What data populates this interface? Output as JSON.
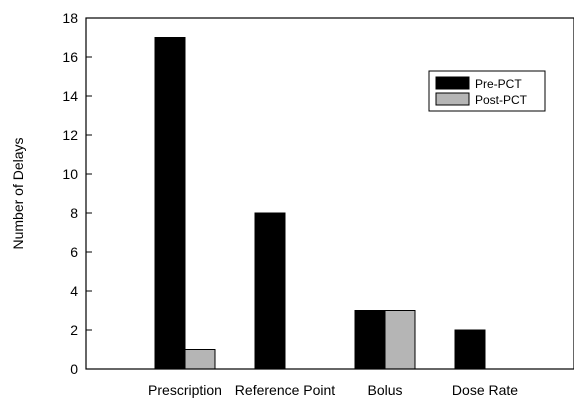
{
  "chart_data": {
    "type": "bar",
    "title": "",
    "xlabel": "",
    "ylabel": "Number of Delays",
    "ylim": [
      0,
      18
    ],
    "yticks": [
      0,
      2,
      4,
      6,
      8,
      10,
      12,
      14,
      16,
      18
    ],
    "categories": [
      "Prescription",
      "Reference Point",
      "Bolus",
      "Dose Rate"
    ],
    "series": [
      {
        "name": "Pre-PCT",
        "color": "#000000",
        "values": [
          17,
          8,
          3,
          2
        ]
      },
      {
        "name": "Post-PCT",
        "color": "#b5b5b5",
        "values": [
          1,
          0,
          3,
          0
        ]
      }
    ],
    "grid": false,
    "legend_position": "top-right"
  }
}
